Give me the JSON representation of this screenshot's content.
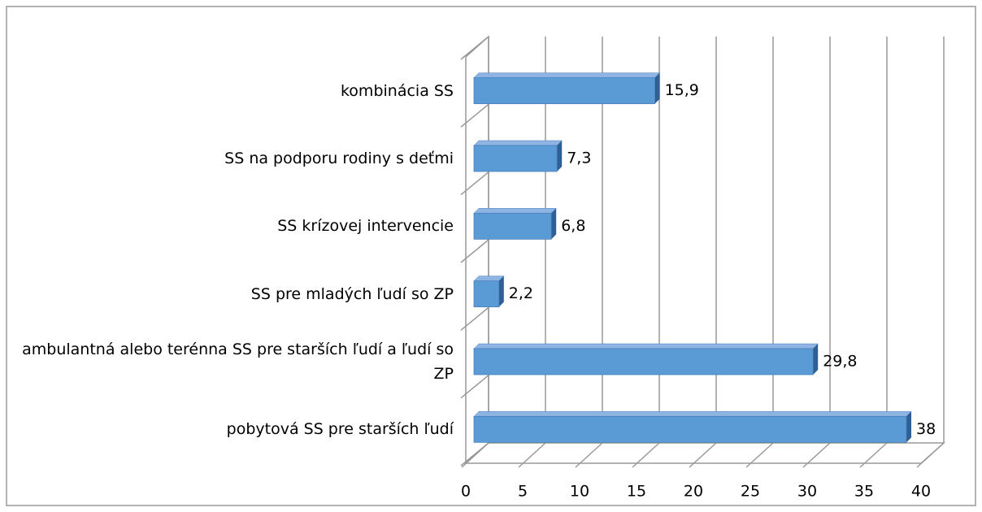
{
  "chart_data": {
    "type": "bar3d-horizontal",
    "categories": [
      "kombinácia SS",
      "SS na podporu rodiny s deťmi",
      "SS krízovej intervencie",
      "SS pre mladých ľudí so ZP",
      "ambulantná alebo terénna SS pre starších ľudí a ľudí so ZP",
      "pobytová SS pre starších ľudí"
    ],
    "values": [
      15.9,
      7.3,
      6.8,
      2.2,
      29.8,
      38
    ],
    "value_labels": [
      "15,9",
      "7,3",
      "6,8",
      "2,2",
      "29,8",
      "38"
    ],
    "color": "#5b9bd5",
    "xlim": [
      0,
      40
    ],
    "xticks": [
      0,
      5,
      10,
      15,
      20,
      25,
      30,
      35,
      40
    ],
    "grid": true
  }
}
